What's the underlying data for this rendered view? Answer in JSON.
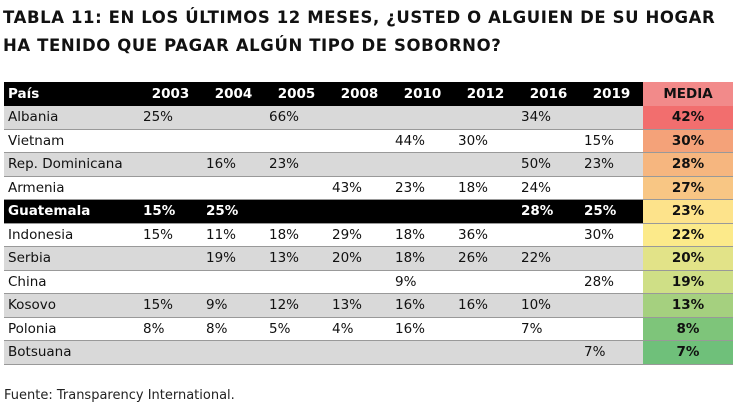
{
  "title": "TABLA 11: EN LOS ÚLTIMOS 12 MESES, ¿USTED O ALGUIEN DE SU HOGAR HA TENIDO QUE PAGAR ALGÚN TIPO DE SOBORNO?",
  "headers": [
    "País",
    "2003",
    "2004",
    "2005",
    "2008",
    "2010",
    "2012",
    "2016",
    "2019",
    "MEDIA"
  ],
  "rows": [
    {
      "country": "Albania",
      "values": [
        "25%",
        "",
        "66%",
        "",
        "",
        "",
        "34%",
        ""
      ],
      "media": "42%",
      "color": "#f26e6e",
      "style": "alt"
    },
    {
      "country": "Vietnam",
      "values": [
        "",
        "",
        "",
        "",
        "44%",
        "30%",
        "",
        "15%"
      ],
      "media": "30%",
      "color": "#f4a279",
      "style": "plain"
    },
    {
      "country": "Rep. Dominicana",
      "values": [
        "",
        "16%",
        "23%",
        "",
        "",
        "",
        "50%",
        "23%"
      ],
      "media": "28%",
      "color": "#f6b67f",
      "style": "alt"
    },
    {
      "country": "Armenia",
      "values": [
        "",
        "",
        "",
        "43%",
        "23%",
        "18%",
        "24%",
        ""
      ],
      "media": "27%",
      "color": "#f8c684",
      "style": "plain"
    },
    {
      "country": "Guatemala",
      "values": [
        "15%",
        "25%",
        "",
        "",
        "",
        "",
        "28%",
        "25%"
      ],
      "media": "23%",
      "color": "#fde38b",
      "style": "dark"
    },
    {
      "country": "Indonesia",
      "values": [
        "15%",
        "11%",
        "18%",
        "29%",
        "18%",
        "36%",
        "",
        "30%"
      ],
      "media": "22%",
      "color": "#fcea8a",
      "style": "plain"
    },
    {
      "country": "Serbia",
      "values": [
        "",
        "19%",
        "13%",
        "20%",
        "18%",
        "26%",
        "22%",
        ""
      ],
      "media": "20%",
      "color": "#e2e388",
      "style": "alt"
    },
    {
      "country": "China",
      "values": [
        "",
        "",
        "",
        "",
        "9%",
        "",
        "",
        "28%"
      ],
      "media": "19%",
      "color": "#cfdf86",
      "style": "plain"
    },
    {
      "country": "Kosovo",
      "values": [
        "15%",
        "9%",
        "12%",
        "13%",
        "16%",
        "16%",
        "10%",
        ""
      ],
      "media": "13%",
      "color": "#a5d07f",
      "style": "alt"
    },
    {
      "country": "Polonia",
      "values": [
        "8%",
        "8%",
        "5%",
        "4%",
        "16%",
        "",
        "7%",
        ""
      ],
      "media": "8%",
      "color": "#7ec57a",
      "style": "plain"
    },
    {
      "country": "Botsuana",
      "values": [
        "",
        "",
        "",
        "",
        "",
        "",
        "",
        "7%"
      ],
      "media": "7%",
      "color": "#6fc07a",
      "style": "alt"
    }
  ],
  "source": "Fuente: Transparency International."
}
